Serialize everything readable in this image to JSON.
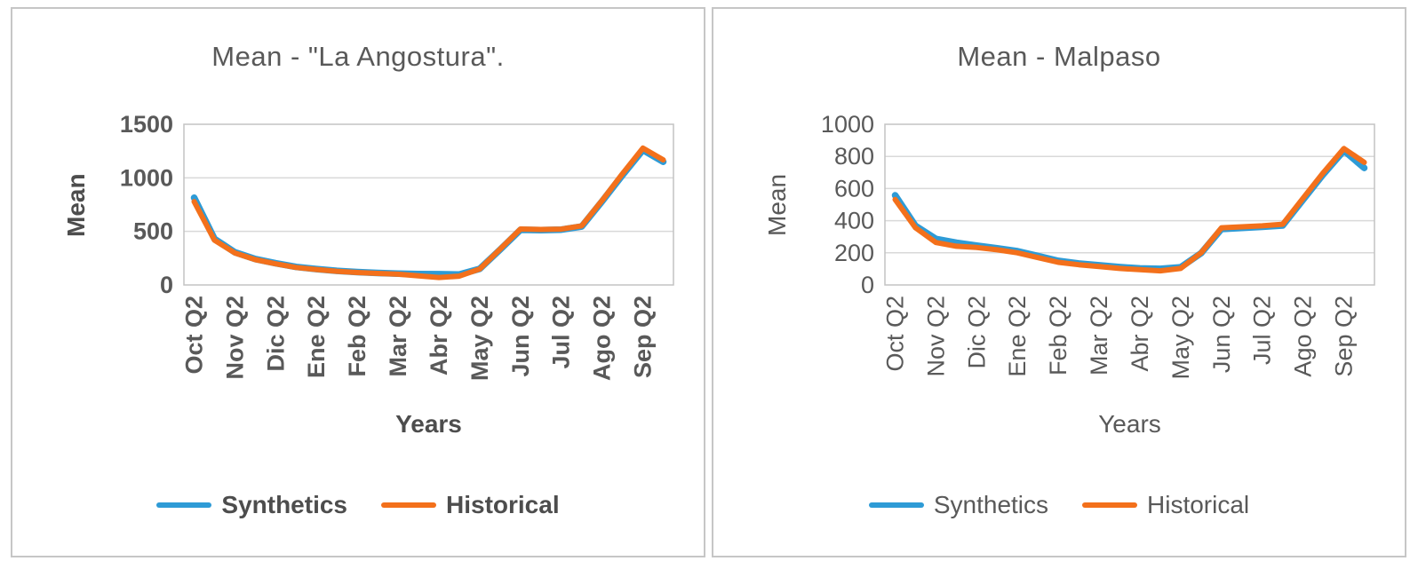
{
  "page": {
    "background": "#ffffff",
    "panel_border_color": "#c6c6c6"
  },
  "palette": {
    "text_gray": "#595959",
    "gridline": "#d9d9d9",
    "plot_border": "#c3c3c3",
    "synthetics_blue": "#2e9bd6",
    "historical_orange": "#f3701b"
  },
  "chart_data": [
    {
      "type": "line",
      "title": "Mean - \"La Angostura\".",
      "ylabel": "Mean",
      "xlabel": "Years",
      "ylim": [
        0,
        1500
      ],
      "y_ticks": [
        0,
        500,
        1000,
        1500
      ],
      "x_tick_labels": [
        "Oct Q2",
        "Nov Q2",
        "Dic Q2",
        "Ene Q2",
        "Feb Q2",
        "Mar Q2",
        "Abr Q2",
        "May Q2",
        "Jun Q2",
        "Jul Q2",
        "Ago Q2",
        "Sep Q2"
      ],
      "points_per_tick": 2,
      "grid": true,
      "legend_position": "bottom",
      "emphasized_text": true,
      "series": [
        {
          "name": "Synthetics",
          "color": "#2e9bd6",
          "values": [
            815,
            430,
            305,
            242,
            202,
            168,
            148,
            132,
            120,
            112,
            105,
            101,
            100,
            97,
            150,
            330,
            515,
            512,
            516,
            545,
            780,
            1025,
            1260,
            1150
          ]
        },
        {
          "name": "Historical",
          "color": "#f3701b",
          "values": [
            778,
            418,
            298,
            236,
            197,
            163,
            144,
            128,
            116,
            108,
            100,
            85,
            70,
            82,
            148,
            335,
            522,
            518,
            521,
            552,
            788,
            1038,
            1277,
            1168
          ]
        }
      ]
    },
    {
      "type": "line",
      "title": "Mean - Malpaso",
      "ylabel": "Mean",
      "xlabel": "Years",
      "ylim": [
        0,
        1000
      ],
      "y_ticks": [
        0,
        200,
        400,
        600,
        800,
        1000
      ],
      "x_tick_labels": [
        "Oct Q2",
        "Nov Q2",
        "Dic Q2",
        "Ene Q2",
        "Feb Q2",
        "Mar Q2",
        "Abr Q2",
        "May Q2",
        "Jun Q2",
        "Jul Q2",
        "Ago Q2",
        "Sep Q2"
      ],
      "points_per_tick": 2,
      "grid": true,
      "legend_position": "bottom",
      "emphasized_text": false,
      "series": [
        {
          "name": "Synthetics",
          "color": "#2e9bd6",
          "values": [
            558,
            368,
            286,
            263,
            245,
            228,
            210,
            180,
            150,
            133,
            122,
            111,
            103,
            100,
            110,
            198,
            348,
            355,
            362,
            370,
            530,
            690,
            836,
            728
          ]
        },
        {
          "name": "Historical",
          "color": "#f3701b",
          "values": [
            532,
            356,
            264,
            241,
            233,
            219,
            200,
            170,
            141,
            126,
            115,
            103,
            95,
            88,
            103,
            200,
            356,
            362,
            368,
            378,
            540,
            700,
            849,
            763
          ]
        }
      ]
    }
  ]
}
